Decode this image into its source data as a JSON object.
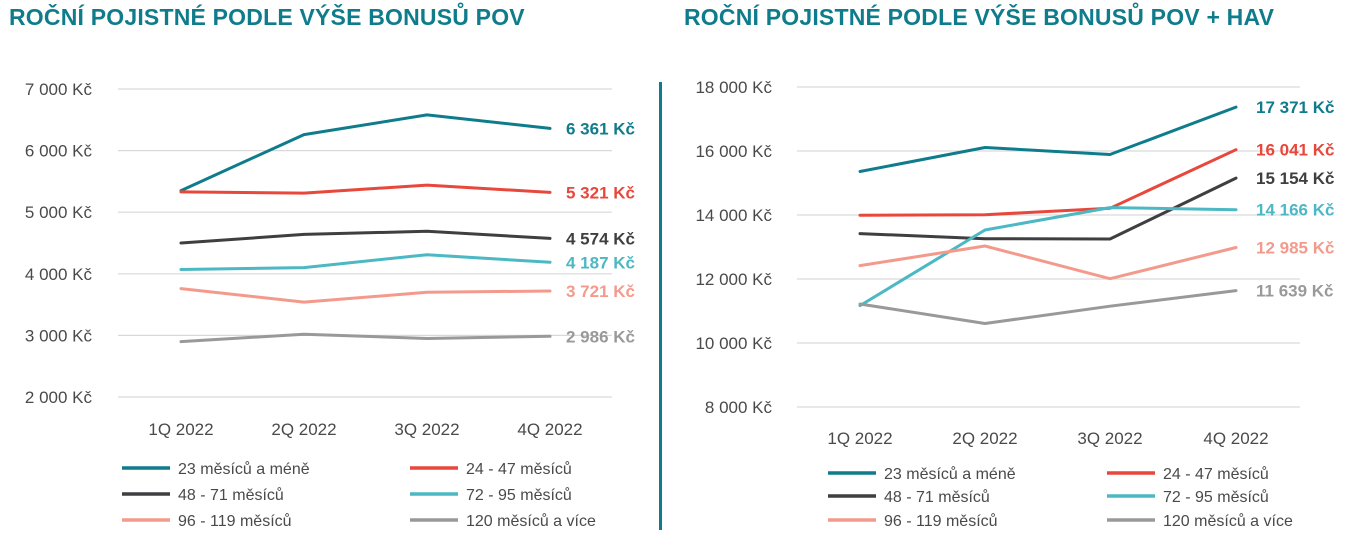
{
  "colors": {
    "title": "#0f7c8c",
    "divider": "#0f7c8c",
    "axis_text": "#4a4a4a",
    "grid": "#d9d9d9"
  },
  "chart_data": [
    {
      "type": "line",
      "title": "ROČNÍ POJISTNÉ PODLE VÝŠE BONUSŮ POV",
      "categories": [
        "1Q 2022",
        "2Q 2022",
        "3Q 2022",
        "4Q 2022"
      ],
      "ylim": [
        2000,
        7000
      ],
      "yticks": [
        {
          "value": 2000,
          "label": "2 000 Kč"
        },
        {
          "value": 3000,
          "label": "3 000 Kč"
        },
        {
          "value": 4000,
          "label": "4 000 Kč"
        },
        {
          "value": 5000,
          "label": "5 000 Kč"
        },
        {
          "value": 6000,
          "label": "6 000 Kč"
        },
        {
          "value": 7000,
          "label": "7 000 Kč"
        }
      ],
      "grid": true,
      "legend_position": "bottom",
      "series": [
        {
          "name": "23 měsíců a méně",
          "color": "#0f7c8c",
          "values": [
            5350,
            6260,
            6580,
            6361
          ],
          "end_label": "6 361 Kč"
        },
        {
          "name": "24 - 47 měsíců",
          "color": "#e8473b",
          "values": [
            5330,
            5310,
            5440,
            5321
          ],
          "end_label": "5 321 Kč"
        },
        {
          "name": "48 - 71 měsíců",
          "color": "#3f3f41",
          "values": [
            4500,
            4640,
            4690,
            4574
          ],
          "end_label": "4 574 Kč"
        },
        {
          "name": "72 - 95 měsíců",
          "color": "#4bb8c4",
          "values": [
            4070,
            4100,
            4310,
            4187
          ],
          "end_label": "4 187 Kč"
        },
        {
          "name": "96 - 119 měsíců",
          "color": "#f39a8c",
          "values": [
            3760,
            3540,
            3700,
            3721
          ],
          "end_label": "3 721 Kč"
        },
        {
          "name": "120 měsíců a více",
          "color": "#999999",
          "values": [
            2900,
            3020,
            2950,
            2986
          ],
          "end_label": "2 986 Kč"
        }
      ]
    },
    {
      "type": "line",
      "title": "ROČNÍ POJISTNÉ PODLE VÝŠE BONUSŮ POV + HAV",
      "categories": [
        "1Q 2022",
        "2Q 2022",
        "3Q 2022",
        "4Q 2022"
      ],
      "ylim": [
        8000,
        18000
      ],
      "yticks": [
        {
          "value": 8000,
          "label": "8 000 Kč"
        },
        {
          "value": 10000,
          "label": "10 000 Kč"
        },
        {
          "value": 12000,
          "label": "12 000 Kč"
        },
        {
          "value": 14000,
          "label": "14 000 Kč"
        },
        {
          "value": 16000,
          "label": "16 000 Kč"
        },
        {
          "value": 18000,
          "label": "18 000 Kč"
        }
      ],
      "grid": true,
      "legend_position": "bottom",
      "series": [
        {
          "name": "23 měsíců a méně",
          "color": "#0f7c8c",
          "values": [
            15360,
            16110,
            15890,
            17371
          ],
          "end_label": "17 371 Kč"
        },
        {
          "name": "24 - 47 měsíců",
          "color": "#e8473b",
          "values": [
            13990,
            14010,
            14210,
            16041
          ],
          "end_label": "16 041 Kč"
        },
        {
          "name": "48 - 71 měsíců",
          "color": "#3f3f41",
          "values": [
            13420,
            13260,
            13250,
            15154
          ],
          "end_label": "15 154 Kč"
        },
        {
          "name": "72 - 95 měsíců",
          "color": "#4bb8c4",
          "values": [
            11170,
            13530,
            14230,
            14166
          ],
          "end_label": "14 166 Kč"
        },
        {
          "name": "96 - 119 měsíců",
          "color": "#f39a8c",
          "values": [
            12420,
            13030,
            12010,
            12985
          ],
          "end_label": "12 985 Kč"
        },
        {
          "name": "120 měsíců a více",
          "color": "#999999",
          "values": [
            11220,
            10610,
            11150,
            11639
          ],
          "end_label": "11 639 Kč"
        }
      ]
    }
  ]
}
